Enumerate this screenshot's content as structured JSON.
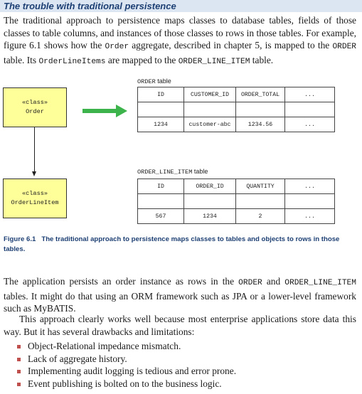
{
  "section": {
    "title": "The trouble with traditional persistence"
  },
  "intro": {
    "p1_text": "The traditional approach to persistence maps classes to database tables, fields of those classes to table columns, and instances of those classes to rows in those tables. For example, figure 6.1 shows how the ",
    "p1_code1": "Order",
    "p1_mid": " aggregate, described in chapter 5, is mapped to the ",
    "p1_code2": "ORDER",
    "p1_mid2": " table. Its ",
    "p1_code3": "OrderLineItems",
    "p1_mid3": " are mapped to the ",
    "p1_code4": "ORDER_LINE_ITEM",
    "p1_end": " table."
  },
  "figure": {
    "order_class": {
      "stereotype": "«class»",
      "name": "Order"
    },
    "line_item_class": {
      "stereotype": "«class»",
      "name": "OrderLineItem"
    },
    "order_table": {
      "name": "ORDER",
      "suffix": " table",
      "headers": [
        "ID",
        "CUSTOMER_ID",
        "ORDER_TOTAL",
        "..."
      ],
      "row": [
        "1234",
        "customer-abc",
        "1234.56",
        "..."
      ]
    },
    "line_item_table": {
      "name": "ORDER_LINE_ITEM",
      "suffix": " table",
      "headers": [
        "ID",
        "ORDER_ID",
        "QUANTITY",
        "..."
      ],
      "row": [
        "567",
        "1234",
        "2",
        "..."
      ]
    },
    "caption_number": "Figure 6.1",
    "caption_text": "The traditional approach to persistence maps classes to tables and objects to rows in those tables."
  },
  "body": {
    "p2_a": "The application persists an order instance as rows in the ",
    "p2_code1": "ORDER",
    "p2_b": " and ",
    "p2_code2": "ORDER_LINE_ITEM",
    "p2_c": " tables. It might do that using an ORM framework such as JPA or a lower-level framework such as MyBATIS.",
    "p3": "This approach clearly works well because most enterprise applications store data this way. But it has several drawbacks and limitations:",
    "bullets": [
      "Object-Relational impedance mismatch.",
      "Lack of aggregate history.",
      "Implementing audit logging is tedious and error prone.",
      "Event publishing is bolted on to the business logic."
    ]
  }
}
